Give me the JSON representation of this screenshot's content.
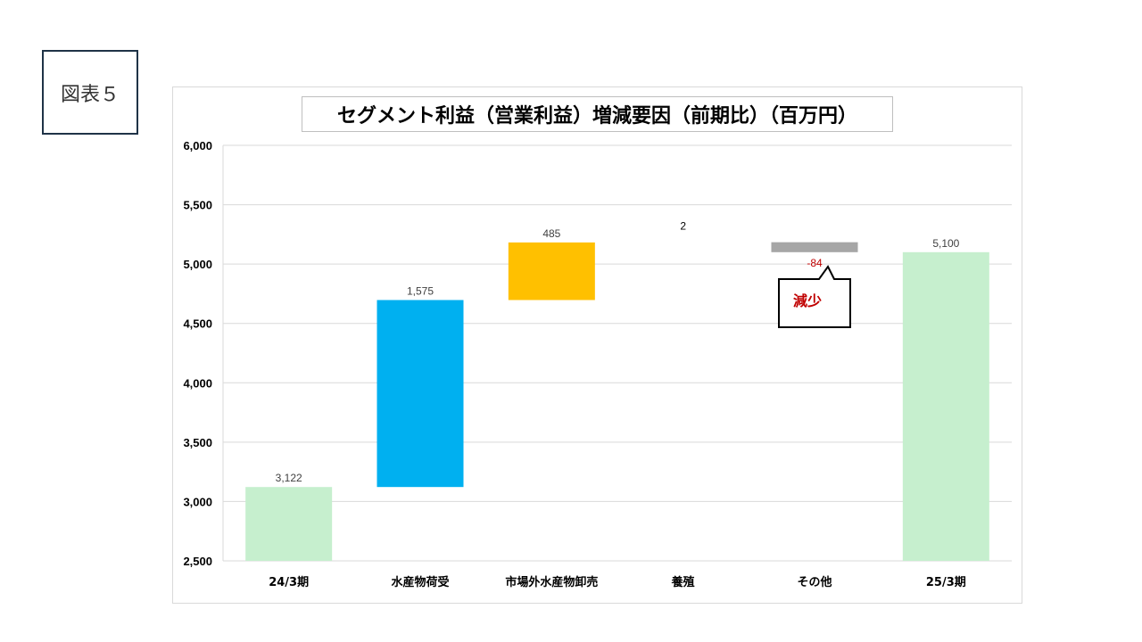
{
  "figure_label": "図表５",
  "chart_data": {
    "type": "waterfall",
    "title": "セグメント利益（営業利益）増減要因（前期比）（百万円）",
    "xlabel": "",
    "ylabel": "",
    "ylim": [
      2500,
      6000
    ],
    "yticks": [
      2500,
      3000,
      3500,
      4000,
      4500,
      5000,
      5500,
      6000
    ],
    "ytick_labels": [
      "2,500",
      "3,000",
      "3,500",
      "4,000",
      "4,500",
      "5,000",
      "5,500",
      "6,000"
    ],
    "grid": true,
    "categories": [
      "24/3期",
      "水産物荷受",
      "市場外水産物卸売",
      "養殖",
      "その他",
      "25/3期"
    ],
    "bars": [
      {
        "kind": "total",
        "start": 2500,
        "end": 3122,
        "value": 3122,
        "label": "3,122",
        "color": "#c6efce"
      },
      {
        "kind": "delta",
        "start": 3122,
        "end": 4697,
        "value": 1575,
        "label": "1,575",
        "color": "#00b0f0"
      },
      {
        "kind": "delta",
        "start": 4697,
        "end": 5182,
        "value": 485,
        "label": "485",
        "color": "#ffc000"
      },
      {
        "kind": "delta",
        "start": 5182,
        "end": 5184,
        "value": 2,
        "label": "2",
        "color": "#ffffff"
      },
      {
        "kind": "delta",
        "start": 5184,
        "end": 5100,
        "value": -84,
        "label": "-84",
        "color": "#a6a6a6"
      },
      {
        "kind": "total",
        "start": 2500,
        "end": 5100,
        "value": 5100,
        "label": "5,100",
        "color": "#c6efce"
      }
    ],
    "annotation": {
      "text": "減少",
      "color": "#c00000"
    }
  }
}
